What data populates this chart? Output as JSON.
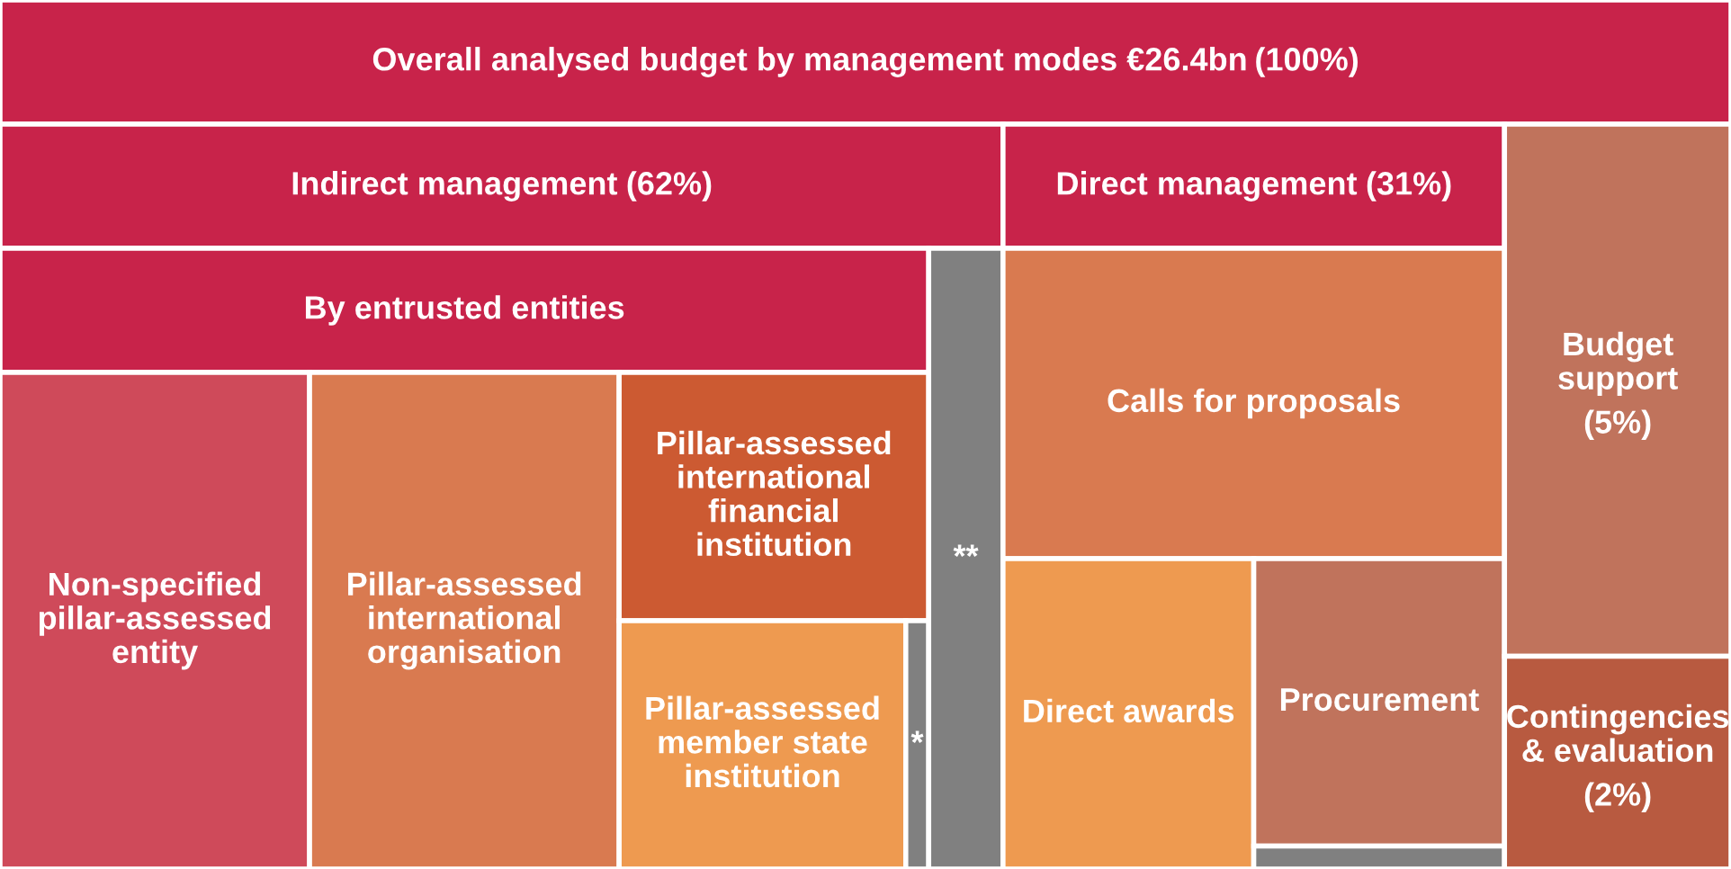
{
  "chart_data": {
    "type": "other",
    "categories": [
      "Overall analysed budget by management modes €26.4bn",
      "Indirect management",
      "By entrusted entities",
      "Non-specified pillar-assessed entity",
      "Pillar-assessed international organisation",
      "Pillar-assessed international financial institution",
      "Pillar-assessed member state institution",
      "*",
      "**",
      "Direct management",
      "Calls for proposals",
      "Direct awards",
      "Procurement",
      null,
      "Budget support",
      "Contingencies & evaluation"
    ],
    "values": [
      100,
      62,
      null,
      null,
      null,
      null,
      null,
      null,
      null,
      31,
      null,
      null,
      null,
      null,
      5,
      2
    ],
    "value_labels": [
      "(100%)",
      "(62%)",
      null,
      null,
      null,
      null,
      null,
      null,
      null,
      "(31%)",
      null,
      null,
      null,
      null,
      "(5%)",
      "(2%)"
    ],
    "colors": [
      "#c8234a",
      "#c8234a",
      "#c8234a",
      "#cf4a5a",
      "#d97a50",
      "#cc5a32",
      "#ee9a50",
      "#808080",
      "#808080",
      "#c8234a",
      "#d97a50",
      "#ee9a50",
      "#c0735c",
      "#808080",
      "#c0735c",
      "#b85a40"
    ]
  }
}
